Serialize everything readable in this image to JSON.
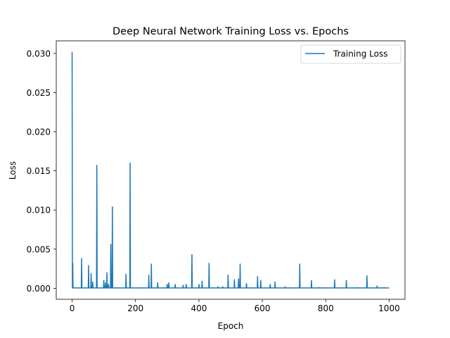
{
  "chart_data": {
    "type": "line",
    "title": "Deep Neural Network Training Loss vs. Epochs",
    "xlabel": "Epoch",
    "ylabel": "Loss",
    "xlim": [
      -50,
      1050
    ],
    "ylim": [
      -0.0014,
      0.0316
    ],
    "xticks": [
      0,
      200,
      400,
      600,
      800,
      1000
    ],
    "xtick_labels": [
      "0",
      "200",
      "400",
      "600",
      "800",
      "1000"
    ],
    "yticks": [
      0.0,
      0.005,
      0.01,
      0.015,
      0.02,
      0.025,
      0.03
    ],
    "ytick_labels": [
      "0.000",
      "0.005",
      "0.010",
      "0.015",
      "0.020",
      "0.025",
      "0.030"
    ],
    "grid": false,
    "legend_position": "top-right",
    "series": [
      {
        "name": "Training Loss",
        "color": "#1f77b4",
        "baseline": 5e-05,
        "x_range": [
          0,
          1000
        ],
        "spikes": [
          [
            0,
            0.0302
          ],
          [
            2,
            0.0032
          ],
          [
            30,
            0.0038
          ],
          [
            52,
            0.0029
          ],
          [
            60,
            0.0019
          ],
          [
            65,
            0.0008
          ],
          [
            78,
            0.0157
          ],
          [
            100,
            0.001
          ],
          [
            105,
            0.0007
          ],
          [
            110,
            0.002
          ],
          [
            115,
            0.0005
          ],
          [
            122,
            0.0056
          ],
          [
            127,
            0.0104
          ],
          [
            170,
            0.0018
          ],
          [
            183,
            0.016
          ],
          [
            242,
            0.0017
          ],
          [
            250,
            0.0031
          ],
          [
            270,
            0.0007
          ],
          [
            300,
            0.0005
          ],
          [
            305,
            0.0007
          ],
          [
            325,
            0.0005
          ],
          [
            350,
            0.0004
          ],
          [
            360,
            0.0005
          ],
          [
            378,
            0.0043
          ],
          [
            400,
            0.0005
          ],
          [
            410,
            0.0009
          ],
          [
            432,
            0.0032
          ],
          [
            460,
            0.0002
          ],
          [
            475,
            0.0002
          ],
          [
            492,
            0.0017
          ],
          [
            512,
            0.0011
          ],
          [
            525,
            0.0012
          ],
          [
            530,
            0.0031
          ],
          [
            550,
            0.0006
          ],
          [
            585,
            0.0015
          ],
          [
            595,
            0.001
          ],
          [
            625,
            0.0005
          ],
          [
            640,
            0.0008
          ],
          [
            672,
            0.0002
          ],
          [
            718,
            0.0031
          ],
          [
            755,
            0.001
          ],
          [
            780,
            0.0001
          ],
          [
            828,
            0.0011
          ],
          [
            865,
            0.001
          ],
          [
            900,
            0.0001
          ],
          [
            930,
            0.0016
          ],
          [
            962,
            0.0003
          ],
          [
            985,
            0.0001
          ]
        ]
      }
    ]
  }
}
